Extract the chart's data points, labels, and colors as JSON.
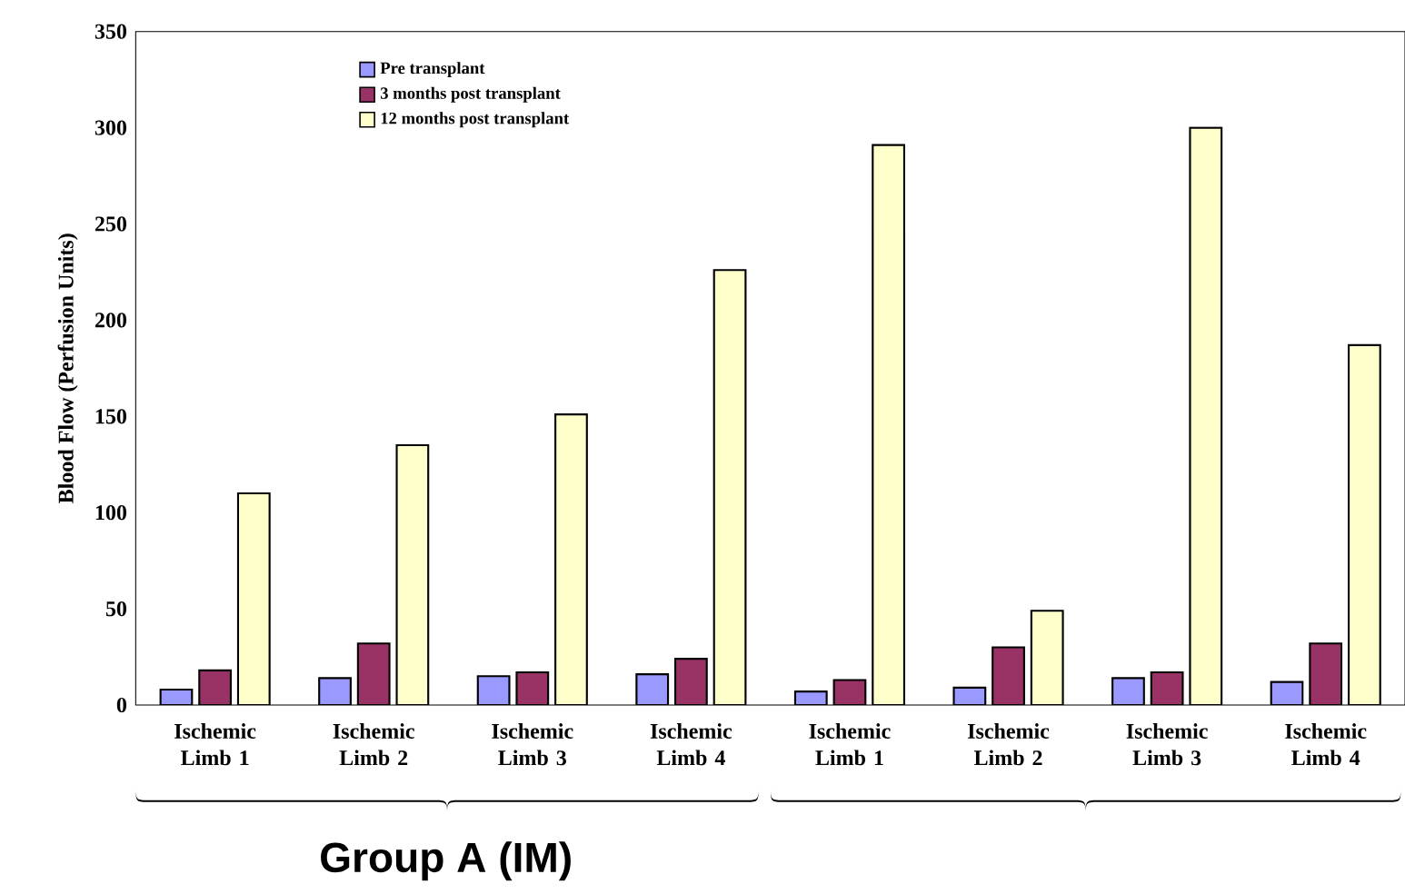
{
  "chart_data": {
    "type": "bar",
    "ylabel": "Blood Flow (Perfusion Units)",
    "categories": [
      "Ischemic Limb 1",
      "Ischemic Limb 2",
      "Ischemic Limb 3",
      "Ischemic Limb 4",
      "Ischemic Limb 1",
      "Ischemic Limb 2",
      "Ischemic Limb 3",
      "Ischemic Limb 4"
    ],
    "series": [
      {
        "name": "Pre transplant",
        "color": "#9999ff",
        "values": [
          8,
          14,
          15,
          16,
          7,
          9,
          14,
          12
        ]
      },
      {
        "name": "3 months post transplant",
        "color": "#993366",
        "values": [
          18,
          32,
          17,
          24,
          13,
          30,
          17,
          32
        ]
      },
      {
        "name": "12 months post transplant",
        "color": "#ffffcc",
        "values": [
          110,
          135,
          151,
          226,
          291,
          49,
          300,
          187
        ]
      }
    ],
    "ylim": [
      0,
      350
    ],
    "yticks": [
      0,
      50,
      100,
      150,
      200,
      250,
      300,
      350
    ],
    "legend": "top left",
    "grid": false,
    "annotations": [
      "Group A (IM)"
    ]
  }
}
